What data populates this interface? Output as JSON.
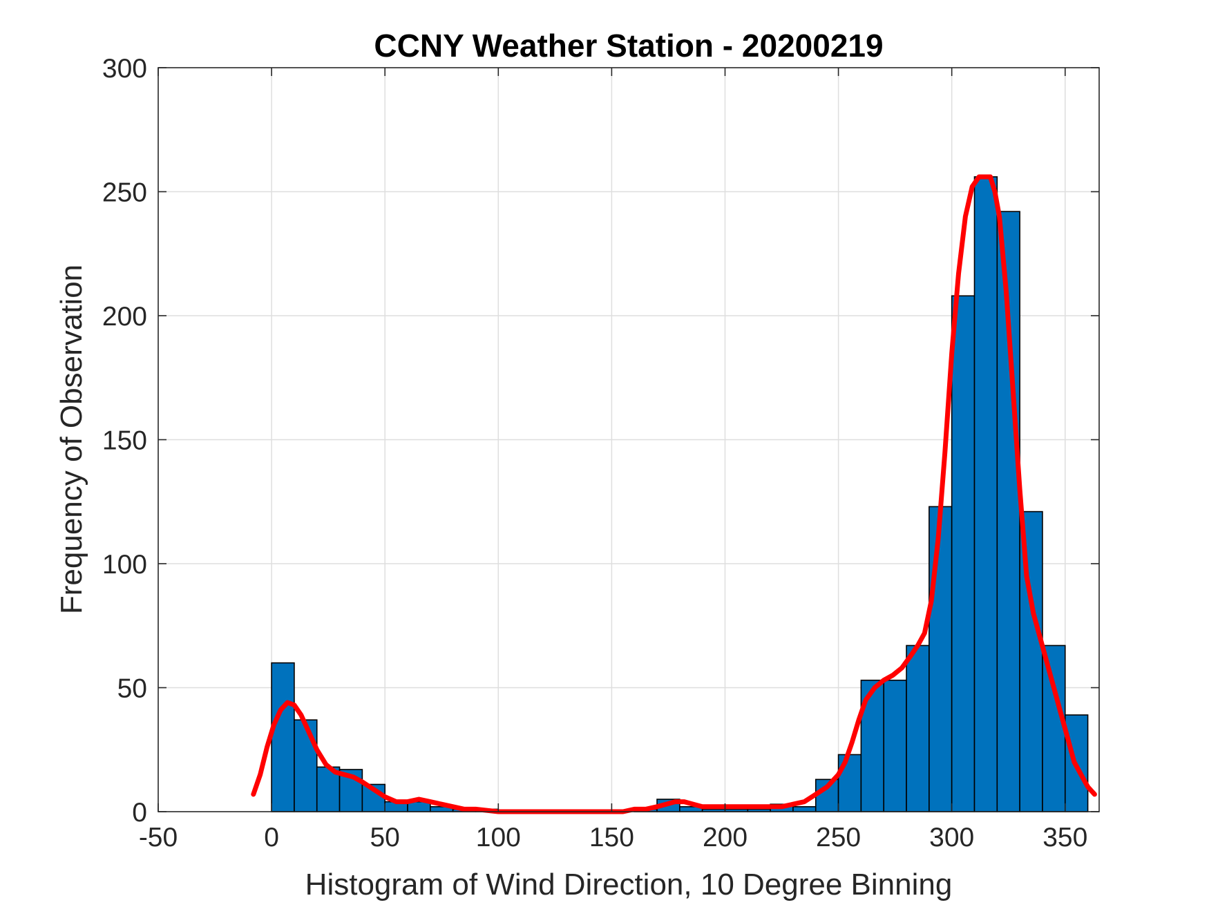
{
  "chart_data": {
    "type": "bar",
    "title": "CCNY Weather Station - 20200219",
    "xlabel": "Histogram of Wind Direction, 10 Degree Binning",
    "ylabel": "Frequency of Observation",
    "xlim": [
      -50,
      365
    ],
    "ylim": [
      0,
      300
    ],
    "xticks": [
      -50,
      0,
      50,
      100,
      150,
      200,
      250,
      300,
      350
    ],
    "yticks": [
      0,
      50,
      100,
      150,
      200,
      250,
      300
    ],
    "grid": true,
    "bin_width": 10,
    "bar_color": "#0072BD",
    "bar_edge_color": "#000000",
    "curve_color": "#FF0000",
    "series": [
      {
        "type": "bar",
        "x": [
          0,
          10,
          20,
          30,
          40,
          50,
          60,
          70,
          80,
          90,
          100,
          110,
          120,
          130,
          140,
          150,
          160,
          170,
          180,
          190,
          200,
          210,
          220,
          230,
          240,
          250,
          260,
          270,
          280,
          290,
          300,
          310,
          320,
          330,
          340,
          350
        ],
        "values": [
          60,
          37,
          18,
          17,
          11,
          4,
          4,
          2,
          1,
          1,
          0,
          0,
          0,
          0,
          0,
          0,
          1,
          5,
          2,
          1,
          1,
          1,
          3,
          2,
          13,
          23,
          53,
          53,
          67,
          123,
          208,
          256,
          242,
          121,
          67,
          39
        ]
      },
      {
        "type": "line",
        "x": [
          -8,
          -5,
          -2,
          1,
          4,
          7,
          10,
          13,
          16,
          20,
          24,
          28,
          32,
          36,
          40,
          45,
          50,
          55,
          60,
          65,
          70,
          75,
          80,
          85,
          90,
          100,
          110,
          120,
          130,
          140,
          150,
          155,
          160,
          165,
          170,
          174,
          178,
          182,
          186,
          190,
          200,
          210,
          220,
          225,
          230,
          235,
          240,
          245,
          250,
          253,
          256,
          259,
          262,
          266,
          270,
          274,
          278,
          282,
          285,
          288,
          291,
          294,
          297,
          300,
          303,
          306,
          309,
          312,
          315,
          317,
          319,
          321,
          324,
          327,
          330,
          333,
          336,
          339,
          342,
          345,
          348,
          351,
          354,
          357,
          360,
          363
        ],
        "values": [
          7,
          15,
          26,
          35,
          41,
          44,
          43,
          39,
          33,
          25,
          19,
          16,
          15,
          14,
          12,
          9,
          6,
          4,
          4,
          5,
          4,
          3,
          2,
          1,
          1,
          0,
          0,
          0,
          0,
          0,
          0,
          0,
          1,
          1,
          2,
          3,
          4,
          4,
          3,
          2,
          2,
          2,
          2,
          2,
          3,
          4,
          7,
          10,
          15,
          20,
          28,
          37,
          45,
          50,
          53,
          55,
          58,
          63,
          67,
          72,
          85,
          110,
          145,
          185,
          217,
          240,
          252,
          256,
          256,
          256,
          250,
          240,
          210,
          170,
          130,
          95,
          80,
          70,
          60,
          50,
          40,
          30,
          20,
          15,
          10,
          7
        ]
      }
    ]
  }
}
